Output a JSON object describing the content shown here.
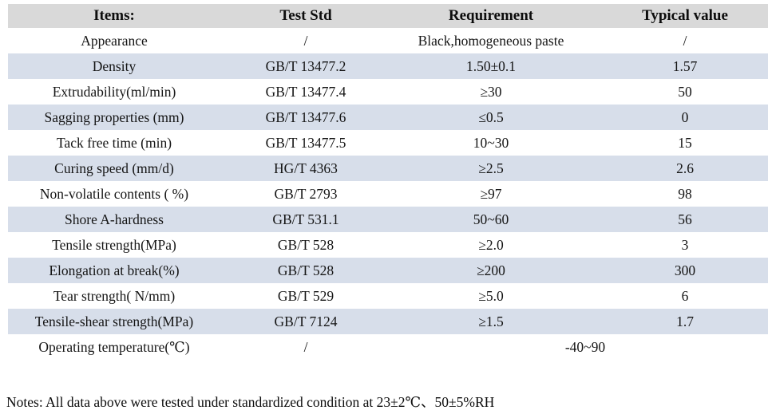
{
  "table": {
    "columns": [
      "Items:",
      "Test Std",
      "Requirement",
      "Typical value"
    ],
    "rows": [
      {
        "item": "Appearance",
        "test_std": "/",
        "requirement": "Black,homogeneous paste",
        "typical_value": "/"
      },
      {
        "item": "Density",
        "test_std": "GB/T 13477.2",
        "requirement": "1.50±0.1",
        "typical_value": "1.57"
      },
      {
        "item": "Extrudability(ml/min)",
        "test_std": "GB/T 13477.4",
        "requirement": "≥30",
        "typical_value": "50"
      },
      {
        "item": "Sagging properties (mm)",
        "test_std": "GB/T 13477.6",
        "requirement": "≤0.5",
        "typical_value": "0"
      },
      {
        "item": "Tack free time (min)",
        "test_std": "GB/T 13477.5",
        "requirement": "10~30",
        "typical_value": "15"
      },
      {
        "item": "Curing speed (mm/d)",
        "test_std": "HG/T 4363",
        "requirement": "≥2.5",
        "typical_value": "2.6"
      },
      {
        "item": "Non-volatile contents ( %)",
        "test_std": "GB/T 2793",
        "requirement": "≥97",
        "typical_value": "98"
      },
      {
        "item": "Shore A-hardness",
        "test_std": "GB/T 531.1",
        "requirement": "50~60",
        "typical_value": "56"
      },
      {
        "item": "Tensile strength(MPa)",
        "test_std": "GB/T 528",
        "requirement": "≥2.0",
        "typical_value": "3"
      },
      {
        "item": "Elongation at break(%)",
        "test_std": "GB/T 528",
        "requirement": "≥200",
        "typical_value": "300"
      },
      {
        "item": "Tear strength( N/mm)",
        "test_std": "GB/T 529",
        "requirement": "≥5.0",
        "typical_value": "6"
      },
      {
        "item": "Tensile-shear strength(MPa)",
        "test_std": "GB/T 7124",
        "requirement": "≥1.5",
        "typical_value": "1.7"
      },
      {
        "item": "Operating temperature(℃)",
        "test_std": "/",
        "requirement": "-40~90",
        "typical_value": null,
        "requirement_colspan": 2
      }
    ]
  },
  "notes": "Notes: All data above were tested under standardized condition at 23±2℃、50±5%RH",
  "colors": {
    "header_bg": "#d9d9d9",
    "band_bg": "#d7deea",
    "text": "#0d0d0d"
  }
}
